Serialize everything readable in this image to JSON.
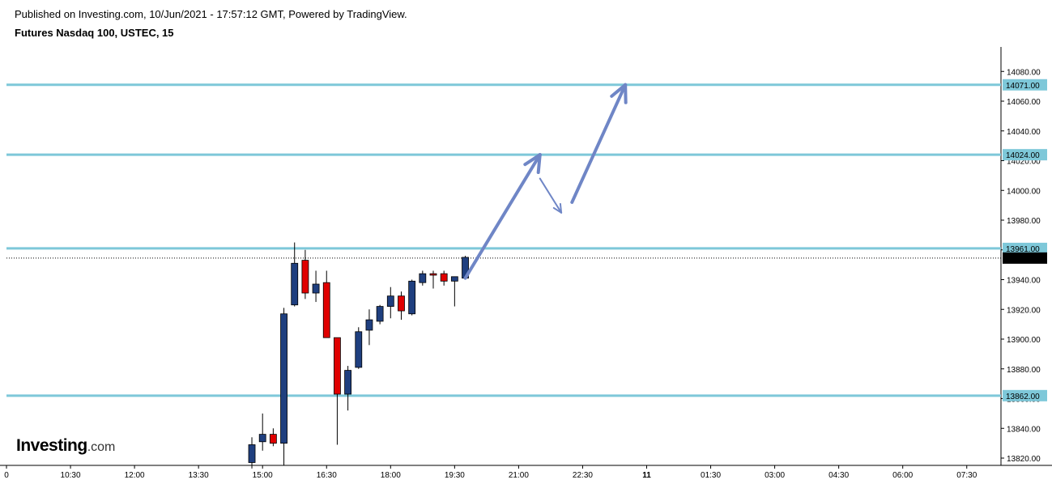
{
  "header": {
    "published": "Published on Investing.com, 10/Jun/2021 - 17:57:12 GMT, Powered by TradingView.",
    "symbol": "Futures Nasdaq 100, USTEC, 15"
  },
  "logo": {
    "word": "Investing",
    "suffix": ".com"
  },
  "colors": {
    "up": "#1f3f7f",
    "down": "#e00000",
    "level_line": "#7ec8d9",
    "level_label_bg": "#7ec8d9",
    "price_label_bg": "#000000",
    "arrow": "#6f86c6"
  },
  "chart_data": {
    "type": "candlestick",
    "y_ticks": [
      "14080.00",
      "14060.00",
      "14040.00",
      "14020.00",
      "14000.00",
      "13980.00",
      "13960.00",
      "13940.00",
      "13920.00",
      "13900.00",
      "13880.00",
      "13860.00",
      "13840.00",
      "13820.00"
    ],
    "x_ticks": [
      "0",
      "10:30",
      "12:00",
      "13:30",
      "15:00",
      "16:30",
      "18:00",
      "19:30",
      "21:00",
      "22:30",
      "11",
      "01:30",
      "03:00",
      "04:30",
      "06:00",
      "07:30"
    ],
    "ylim": [
      13815,
      14094
    ],
    "levels": [
      {
        "value": 14071.0,
        "label": "14071.00"
      },
      {
        "value": 14024.0,
        "label": "14024.00"
      },
      {
        "value": 13961.0,
        "label": "13961.00"
      },
      {
        "value": 13862.0,
        "label": "13862.00"
      }
    ],
    "last_price": {
      "value": 13954.5,
      "label": "13954.50"
    },
    "candles": [
      {
        "t": "14:45",
        "o": 13817,
        "h": 13834,
        "l": 13813,
        "c": 13829
      },
      {
        "t": "15:00",
        "o": 13831,
        "h": 13850,
        "l": 13825,
        "c": 13836
      },
      {
        "t": "15:15",
        "o": 13836,
        "h": 13840,
        "l": 13828,
        "c": 13830
      },
      {
        "t": "15:30",
        "o": 13830,
        "h": 13921,
        "l": 13815,
        "c": 13917
      },
      {
        "t": "15:45",
        "o": 13923,
        "h": 13965,
        "l": 13922,
        "c": 13951
      },
      {
        "t": "16:00",
        "o": 13953,
        "h": 13960,
        "l": 13927,
        "c": 13931
      },
      {
        "t": "16:15",
        "o": 13931,
        "h": 13946,
        "l": 13925,
        "c": 13937
      },
      {
        "t": "16:30",
        "o": 13938,
        "h": 13946,
        "l": 13901,
        "c": 13901
      },
      {
        "t": "16:45",
        "o": 13901,
        "h": 13901,
        "l": 13829,
        "c": 13863
      },
      {
        "t": "17:00",
        "o": 13863,
        "h": 13882,
        "l": 13852,
        "c": 13879
      },
      {
        "t": "17:15",
        "o": 13881,
        "h": 13908,
        "l": 13880,
        "c": 13905
      },
      {
        "t": "17:30",
        "o": 13906,
        "h": 13920,
        "l": 13896,
        "c": 13913
      },
      {
        "t": "17:45",
        "o": 13912,
        "h": 13923,
        "l": 13910,
        "c": 13922
      },
      {
        "t": "18:00",
        "o": 13922,
        "h": 13935,
        "l": 13914,
        "c": 13929
      },
      {
        "t": "18:15",
        "o": 13929,
        "h": 13932,
        "l": 13913,
        "c": 13919
      },
      {
        "t": "18:30",
        "o": 13917,
        "h": 13940,
        "l": 13916,
        "c": 13939
      },
      {
        "t": "18:45",
        "o": 13938,
        "h": 13946,
        "l": 13936,
        "c": 13944
      },
      {
        "t": "19:00",
        "o": 13944,
        "h": 13946,
        "l": 13934,
        "c": 13943
      },
      {
        "t": "19:15",
        "o": 13944,
        "h": 13946,
        "l": 13936,
        "c": 13939
      },
      {
        "t": "19:30",
        "o": 13939,
        "h": 13942,
        "l": 13922,
        "c": 13942
      },
      {
        "t": "19:45",
        "o": 13941,
        "h": 13956,
        "l": 13940,
        "c": 13955
      }
    ],
    "projection_arrows": [
      {
        "from": {
          "t": "19:45",
          "v": 13941
        },
        "to": {
          "t": "21:30",
          "v": 14024
        }
      },
      {
        "from": {
          "t": "21:30",
          "v": 14008
        },
        "to": {
          "t": "22:00",
          "v": 13985
        }
      },
      {
        "from": {
          "t": "22:15",
          "v": 13992
        },
        "to": {
          "t": "23:30",
          "v": 14071
        }
      }
    ]
  }
}
